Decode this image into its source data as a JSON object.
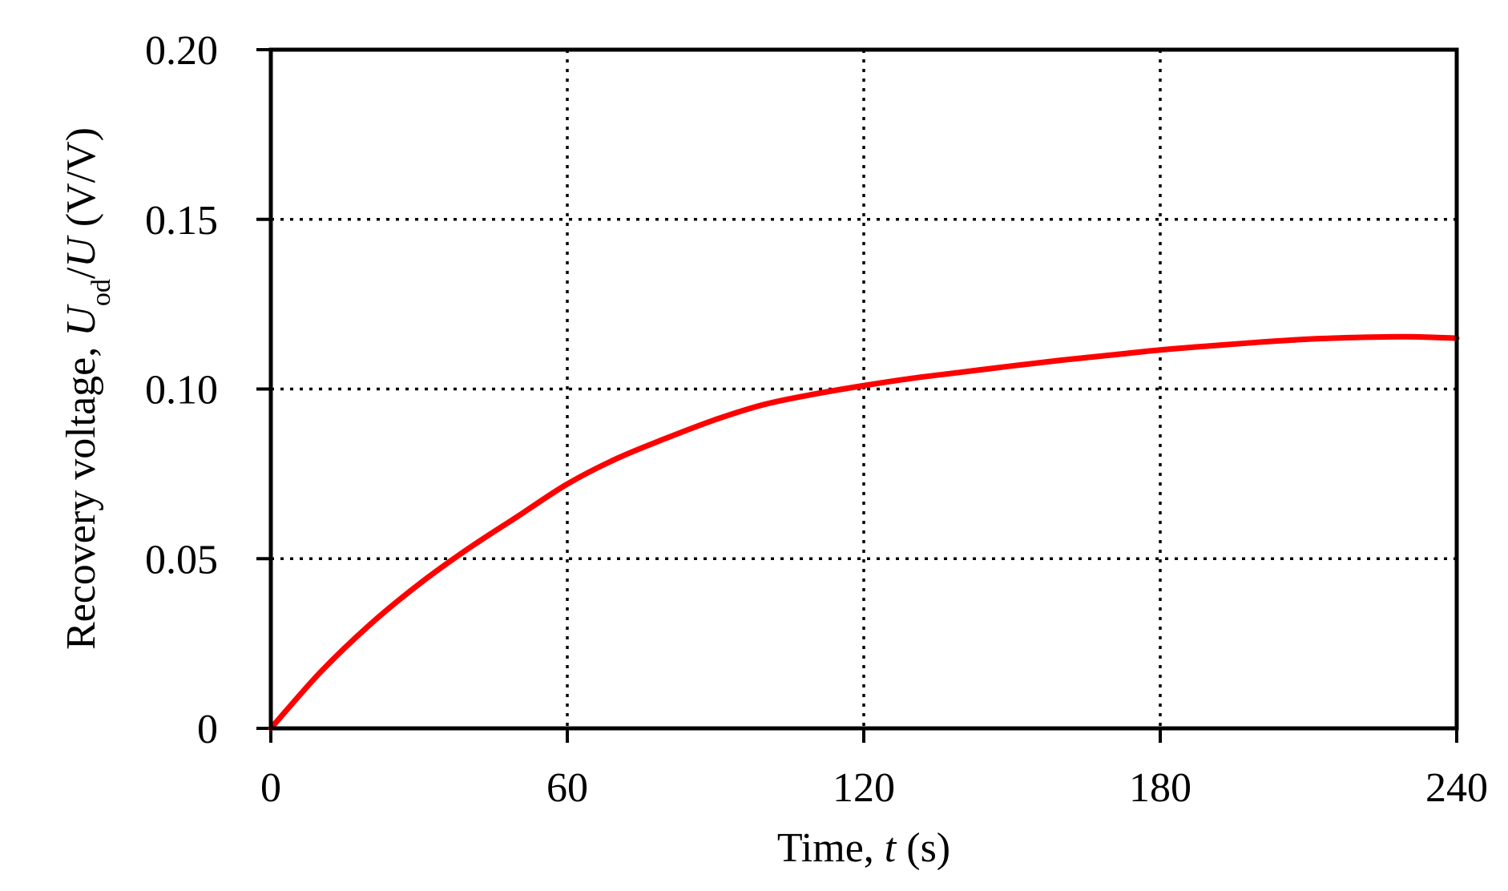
{
  "chart_data": {
    "type": "line",
    "xlabel": {
      "prefix": "Time, ",
      "var": "t",
      "unit": " (s)"
    },
    "ylabel": {
      "prefix": "Recovery voltage, ",
      "num": "U",
      "num_sub": "od",
      "slash": "/",
      "den": "U",
      "unit": " (V/V)"
    },
    "xlim": [
      0,
      240
    ],
    "ylim": [
      0,
      0.2
    ],
    "xticks": [
      0,
      60,
      120,
      180,
      240
    ],
    "xtick_labels": [
      "0",
      "60",
      "120",
      "180",
      "240"
    ],
    "yticks": [
      0,
      0.05,
      0.1,
      0.15,
      0.2
    ],
    "ytick_labels": [
      "0",
      "0.05",
      "0.10",
      "0.15",
      "0.20"
    ],
    "grid": "dotted",
    "series": [
      {
        "color": "#ff0000",
        "x": [
          0,
          10,
          20,
          30,
          40,
          50,
          60,
          70,
          80,
          90,
          100,
          110,
          120,
          130,
          140,
          150,
          160,
          170,
          180,
          190,
          200,
          210,
          220,
          230,
          240
        ],
        "y": [
          0,
          0.0165,
          0.0305,
          0.0425,
          0.053,
          0.0625,
          0.072,
          0.0795,
          0.0855,
          0.091,
          0.0955,
          0.0985,
          0.101,
          0.1032,
          0.105,
          0.1068,
          0.1085,
          0.11,
          0.1115,
          0.1127,
          0.1138,
          0.1147,
          0.1152,
          0.1154,
          0.115
        ]
      }
    ]
  }
}
